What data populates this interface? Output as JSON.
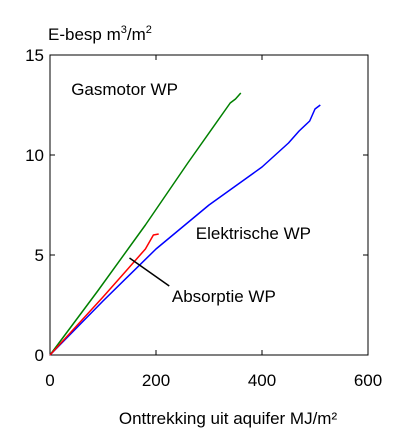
{
  "chart_data": {
    "type": "line",
    "ylabel_main": "E-besp m",
    "ylabel_sup1": "3",
    "ylabel_mid": "/m",
    "ylabel_sup2": "2",
    "xlabel": "Onttrekking uit aquifer MJ/m²",
    "xlim": [
      0,
      600
    ],
    "ylim": [
      0,
      15
    ],
    "x_ticks": [
      0,
      200,
      400,
      600
    ],
    "y_ticks": [
      0,
      5,
      10,
      15
    ],
    "x_tick_labels": [
      "0",
      "200",
      "400",
      "600"
    ],
    "y_tick_labels": [
      "0",
      "5",
      "10",
      "15"
    ],
    "grid": false,
    "series": [
      {
        "name": "Gasmotor WP",
        "color": "#008000",
        "points": [
          [
            0,
            0
          ],
          [
            90,
            3.2
          ],
          [
            180,
            6.5
          ],
          [
            260,
            9.6
          ],
          [
            340,
            12.6
          ],
          [
            350,
            12.8
          ],
          [
            360,
            13.1
          ]
        ]
      },
      {
        "name": "Elektrische WP",
        "color": "#0000ff",
        "points": [
          [
            0,
            0
          ],
          [
            100,
            2.7
          ],
          [
            200,
            5.3
          ],
          [
            300,
            7.5
          ],
          [
            400,
            9.4
          ],
          [
            450,
            10.6
          ],
          [
            470,
            11.2
          ],
          [
            490,
            11.7
          ],
          [
            500,
            12.3
          ],
          [
            510,
            12.5
          ]
        ]
      },
      {
        "name": "Absorptie WP",
        "color": "#ff0000",
        "points": [
          [
            0,
            0
          ],
          [
            100,
            2.9
          ],
          [
            180,
            5.3
          ],
          [
            195,
            6.0
          ],
          [
            205,
            6.05
          ]
        ]
      }
    ],
    "annotations": [
      {
        "text": "Gasmotor WP",
        "at": [
          40,
          13.0
        ]
      },
      {
        "text": "Elektrische WP",
        "at": [
          275,
          5.8
        ]
      },
      {
        "text": "Absorptie WP",
        "at": [
          230,
          2.65
        ]
      }
    ],
    "pointer": {
      "from": [
        150,
        4.85
      ],
      "to": [
        225,
        3.45
      ]
    }
  }
}
